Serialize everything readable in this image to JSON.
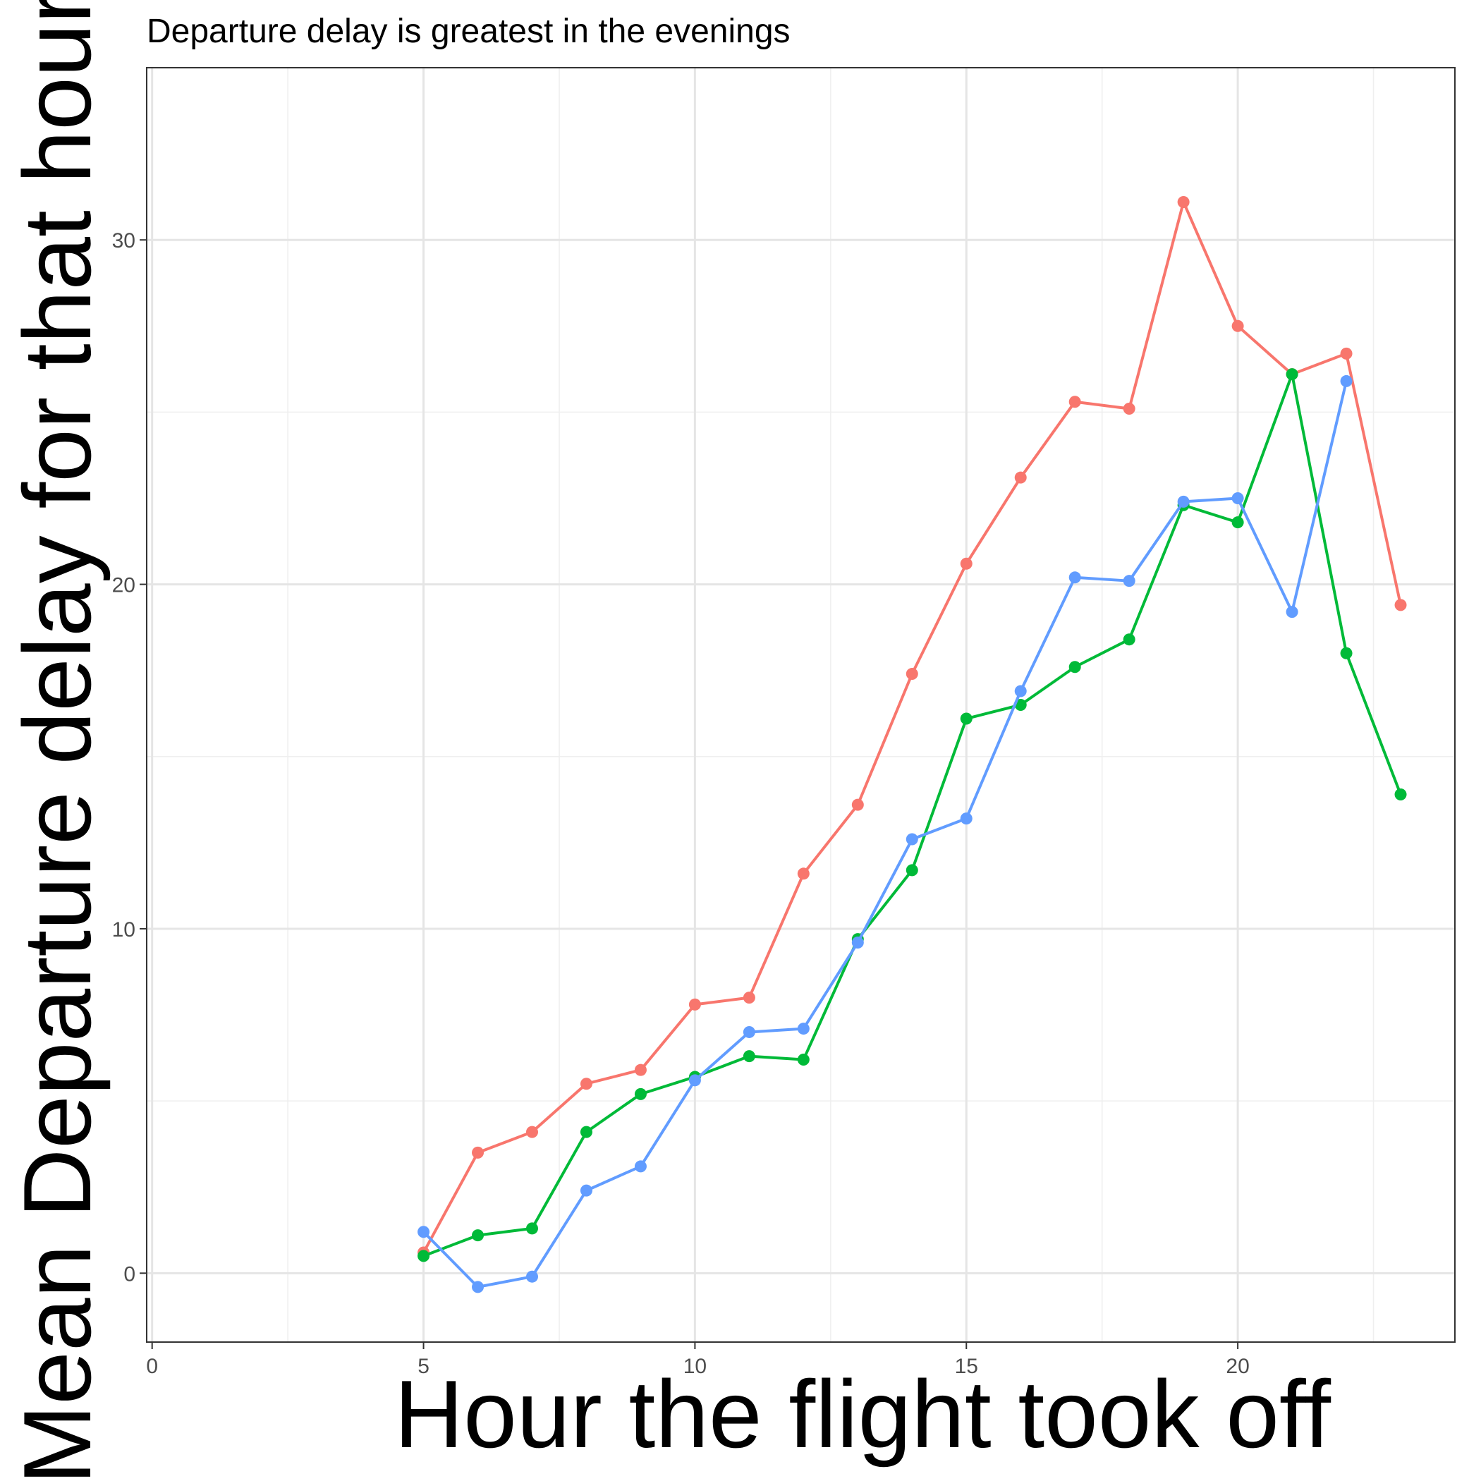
{
  "chart_data": {
    "type": "line",
    "title": "",
    "subtitle": "Departure delay is greatest in the evenings",
    "xlabel": "Hour the flight took off",
    "ylabel": "Mean Departure delay for that hour",
    "xlim": [
      -0.1,
      24
    ],
    "ylim": [
      -2,
      35
    ],
    "x_ticks": [
      0,
      5,
      10,
      15,
      20
    ],
    "y_ticks": [
      0,
      10,
      20,
      30
    ],
    "grid": true,
    "legend": "none",
    "series": [
      {
        "color": "#F8766D",
        "points": [
          {
            "x": 5,
            "y": 0.6
          },
          {
            "x": 6,
            "y": 3.5
          },
          {
            "x": 7,
            "y": 4.1
          },
          {
            "x": 8,
            "y": 5.5
          },
          {
            "x": 9,
            "y": 5.9
          },
          {
            "x": 10,
            "y": 7.8
          },
          {
            "x": 11,
            "y": 8.0
          },
          {
            "x": 12,
            "y": 11.6
          },
          {
            "x": 13,
            "y": 13.6
          },
          {
            "x": 14,
            "y": 17.4
          },
          {
            "x": 15,
            "y": 20.6
          },
          {
            "x": 16,
            "y": 23.1
          },
          {
            "x": 17,
            "y": 25.3
          },
          {
            "x": 18,
            "y": 25.1
          },
          {
            "x": 19,
            "y": 31.1
          },
          {
            "x": 20,
            "y": 27.5
          },
          {
            "x": 21,
            "y": 26.1
          },
          {
            "x": 22,
            "y": 26.7
          },
          {
            "x": 23,
            "y": 19.4
          }
        ]
      },
      {
        "color": "#00BA38",
        "points": [
          {
            "x": 5,
            "y": 0.5
          },
          {
            "x": 6,
            "y": 1.1
          },
          {
            "x": 7,
            "y": 1.3
          },
          {
            "x": 8,
            "y": 4.1
          },
          {
            "x": 9,
            "y": 5.2
          },
          {
            "x": 10,
            "y": 5.7
          },
          {
            "x": 11,
            "y": 6.3
          },
          {
            "x": 12,
            "y": 6.2
          },
          {
            "x": 13,
            "y": 9.7
          },
          {
            "x": 14,
            "y": 11.7
          },
          {
            "x": 15,
            "y": 16.1
          },
          {
            "x": 16,
            "y": 16.5
          },
          {
            "x": 17,
            "y": 17.6
          },
          {
            "x": 18,
            "y": 18.4
          },
          {
            "x": 19,
            "y": 22.3
          },
          {
            "x": 20,
            "y": 21.8
          },
          {
            "x": 21,
            "y": 26.1
          },
          {
            "x": 22,
            "y": 18.0
          },
          {
            "x": 23,
            "y": 13.9
          }
        ]
      },
      {
        "color": "#619CFF",
        "points": [
          {
            "x": 5,
            "y": 1.2
          },
          {
            "x": 6,
            "y": -0.4
          },
          {
            "x": 7,
            "y": -0.1
          },
          {
            "x": 8,
            "y": 2.4
          },
          {
            "x": 9,
            "y": 3.1
          },
          {
            "x": 10,
            "y": 5.6
          },
          {
            "x": 11,
            "y": 7.0
          },
          {
            "x": 12,
            "y": 7.1
          },
          {
            "x": 13,
            "y": 9.6
          },
          {
            "x": 14,
            "y": 12.6
          },
          {
            "x": 15,
            "y": 13.2
          },
          {
            "x": 16,
            "y": 16.9
          },
          {
            "x": 17,
            "y": 20.2
          },
          {
            "x": 18,
            "y": 20.1
          },
          {
            "x": 19,
            "y": 22.4
          },
          {
            "x": 20,
            "y": 22.5
          },
          {
            "x": 21,
            "y": 19.2
          },
          {
            "x": 22,
            "y": 25.9
          }
        ]
      }
    ]
  }
}
